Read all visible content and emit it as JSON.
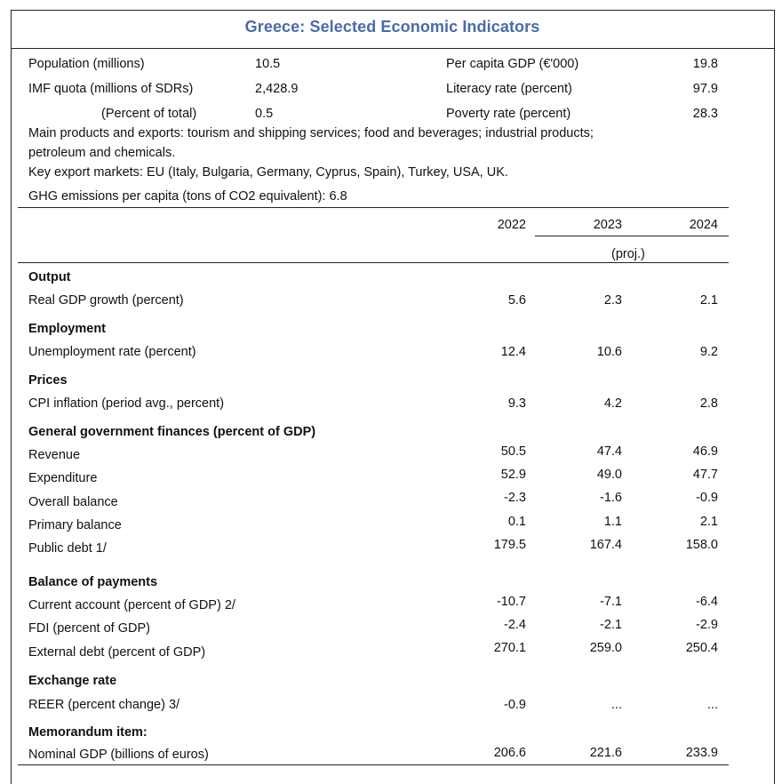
{
  "title": "Greece: Selected Economic Indicators",
  "info": {
    "population_label": "Population (millions)",
    "population_value": "10.5",
    "gdp_pc_label": "Per capita GDP (€'000)",
    "gdp_pc_value": "19.8",
    "quota_label": "IMF quota (millions of SDRs)",
    "quota_value": "2,428.9",
    "literacy_label": "Literacy rate (percent)",
    "literacy_value": "97.9",
    "quota_pct_label": "(Percent of total)",
    "quota_pct_value": "0.5",
    "poverty_label": "Poverty rate (percent)",
    "poverty_value": "28.3",
    "products_line1": "Main products and exports: tourism and shipping services; food and beverages; industrial products;",
    "products_line2": "petroleum and chemicals.",
    "markets": "Key export markets: EU (Italy, Bulgaria, Germany, Cyprus, Spain), Turkey, USA, UK.",
    "ghg": "GHG emissions per capita (tons of CO2 equivalent): 6.8"
  },
  "columns": {
    "y2022": "2022",
    "y2023": "2023",
    "y2024": "2024",
    "proj": "(proj.)"
  },
  "sections": {
    "output": "Output",
    "employment": "Employment",
    "prices": "Prices",
    "gov": "General government finances (percent of GDP)",
    "bop": "Balance of payments",
    "exchange": "Exchange rate",
    "memo": "Memorandum item:"
  },
  "rows": {
    "real_gdp": {
      "label": "Real GDP growth (percent)",
      "v2022": "5.6",
      "v2023": "2.3",
      "v2024": "2.1"
    },
    "unemp": {
      "label": "Unemployment rate (percent)",
      "v2022": "12.4",
      "v2023": "10.6",
      "v2024": "9.2"
    },
    "cpi": {
      "label": "CPI inflation (period avg., percent)",
      "v2022": "9.3",
      "v2023": "4.2",
      "v2024": "2.8"
    },
    "revenue": {
      "label": "Revenue",
      "v2022": "50.5",
      "v2023": "47.4",
      "v2024": "46.9"
    },
    "expenditure": {
      "label": "Expenditure",
      "v2022": "52.9",
      "v2023": "49.0",
      "v2024": "47.7"
    },
    "overall": {
      "label": "Overall balance",
      "v2022": "-2.3",
      "v2023": "-1.6",
      "v2024": "-0.9"
    },
    "primary": {
      "label": "Primary balance",
      "v2022": "0.1",
      "v2023": "1.1",
      "v2024": "2.1"
    },
    "debt": {
      "label": "Public debt 1/",
      "v2022": "179.5",
      "v2023": "167.4",
      "v2024": "158.0"
    },
    "ca": {
      "label": "Current account (percent of GDP) 2/",
      "v2022": "-10.7",
      "v2023": "-7.1",
      "v2024": "-6.4"
    },
    "fdi": {
      "label": "FDI (percent of GDP)",
      "v2022": "-2.4",
      "v2023": "-2.1",
      "v2024": "-2.9"
    },
    "extdebt": {
      "label": "External debt (percent of GDP)",
      "v2022": "270.1",
      "v2023": "259.0",
      "v2024": "250.4"
    },
    "reer": {
      "label": "REER (percent change) 3/",
      "v2022": "-0.9",
      "v2023": "...",
      "v2024": "..."
    },
    "ngdp": {
      "label": "Nominal GDP (billions of euros)",
      "v2022": "206.6",
      "v2023": "221.6",
      "v2024": "233.9"
    }
  }
}
